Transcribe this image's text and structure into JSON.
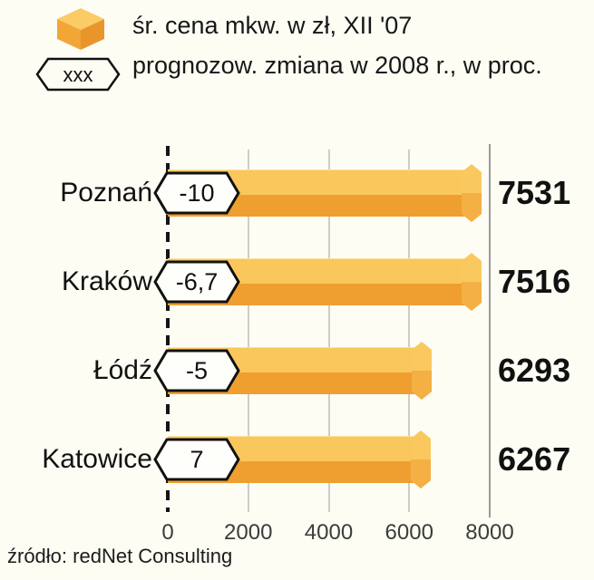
{
  "legend": {
    "price_label": "śr. cena mkw. w zł, XII '07",
    "change_label": "prognozow. zmiana w 2008 r., w proc.",
    "hexagon_placeholder": "xxx"
  },
  "chart_data": {
    "type": "bar",
    "orientation": "horizontal",
    "title": "",
    "categories": [
      "Poznań",
      "Kraków",
      "Łódź",
      "Katowice"
    ],
    "series": [
      {
        "name": "śr. cena mkw. w zł, XII '07",
        "values": [
          7531,
          7516,
          6293,
          6267
        ]
      },
      {
        "name": "prognozow. zmiana w 2008 r., w proc.",
        "values": [
          "-10",
          "-6,7",
          "-5",
          "7"
        ]
      }
    ],
    "values": [
      7531,
      7516,
      6293,
      6267
    ],
    "change_2008_pct": [
      "-10",
      "-6,7",
      "-5",
      "7"
    ],
    "x_ticks": [
      "0",
      "2000",
      "4000",
      "6000",
      "8000"
    ],
    "xlim": [
      0,
      8000
    ],
    "grid": "vertical",
    "legend_position": "top-left",
    "bar_color_top": "#FAC75D",
    "bar_color_bottom": "#EF9F2F"
  },
  "source": "źródło: redNet Consulting"
}
